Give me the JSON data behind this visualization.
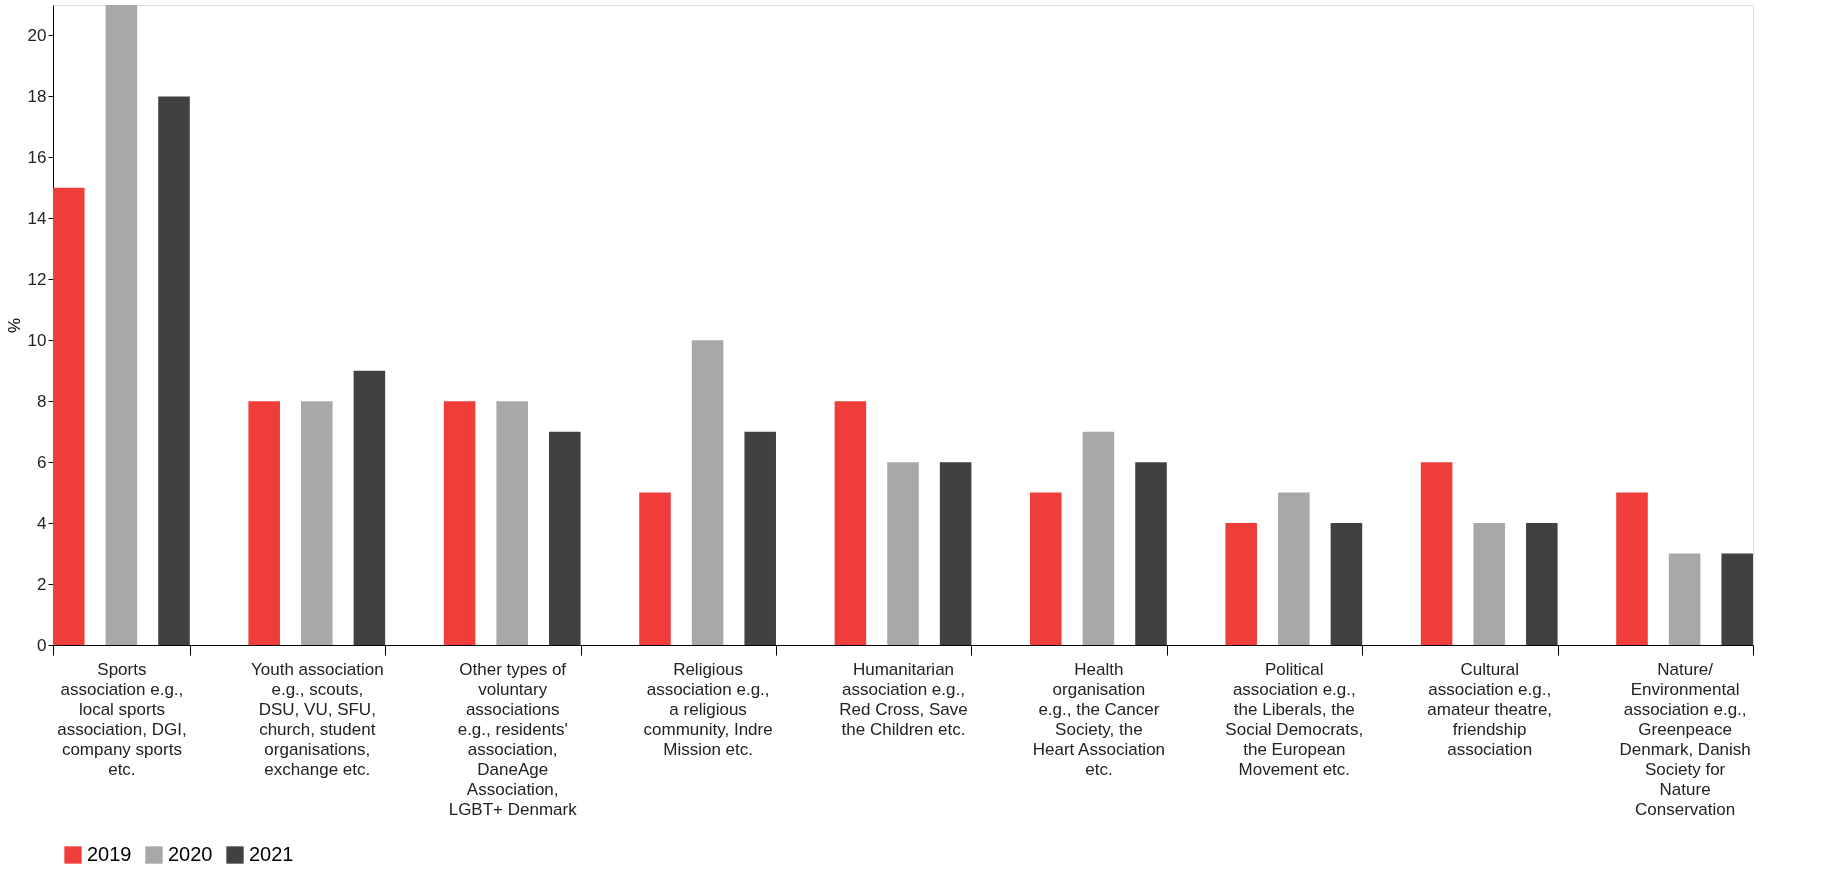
{
  "chart_data": {
    "type": "bar",
    "ylabel": "%",
    "categories": [
      "Sports association e.g., local sports association, DGI, company sports etc.",
      "Youth association e.g., scouts, DSU, VU, SFU, church, student organisations, exchange etc.",
      "Other types of voluntary associations e.g., residents' association, DaneAge Association, LGBT+ Denmark",
      "Religious association e.g., a religious community, Indre Mission etc.",
      "Humanitarian association e.g., Red Cross, Save the Children etc.",
      "Health organisation e.g., the Cancer Society, the Heart Association etc.",
      "Political association e.g., the Liberals, the Social Democrats, the European Movement etc.",
      "Cultural association e.g., amateur theatre, friendship association",
      "Nature/ Environmental association e.g., Greenpeace Denmark, Danish Society for Nature Conservation"
    ],
    "series": [
      {
        "name": "2019",
        "color": "#ef3e3a",
        "values": [
          15,
          8,
          8,
          5,
          8,
          5,
          4,
          6,
          5
        ]
      },
      {
        "name": "2020",
        "color": "#a7a8aa",
        "values": [
          21,
          8,
          8,
          10,
          6,
          7,
          5,
          4,
          3
        ]
      },
      {
        "name": "2021",
        "color": "#414042",
        "values": [
          18,
          9,
          7,
          7,
          6,
          6,
          4,
          4,
          3
        ]
      }
    ],
    "ylim": [
      0,
      21
    ],
    "yticks": [
      0,
      2,
      4,
      6,
      8,
      10,
      12,
      14,
      16,
      18,
      20
    ],
    "grid": false,
    "legend": "bottom"
  }
}
